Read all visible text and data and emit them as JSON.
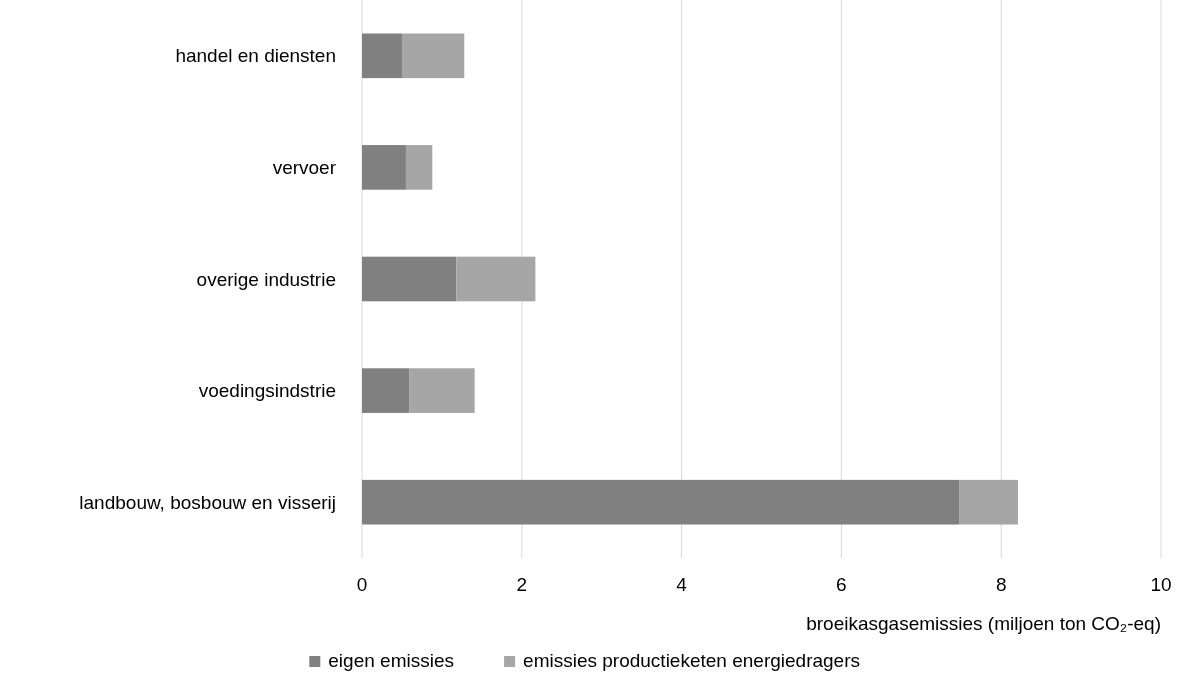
{
  "chart_data": {
    "type": "bar",
    "orientation": "horizontal",
    "stacked": true,
    "categories": [
      "handel en diensten",
      "vervoer",
      "overige industrie",
      "voedingsindstrie",
      "landbouw, bosbouw en visserij"
    ],
    "series": [
      {
        "name": "eigen emissies",
        "color": "#808080",
        "values": [
          0.5,
          0.55,
          1.18,
          0.59,
          7.48
        ]
      },
      {
        "name": "emissies productieketen energiedragers",
        "color": "#a6a6a6",
        "values": [
          0.78,
          0.33,
          0.99,
          0.82,
          0.73
        ]
      }
    ],
    "xlim": [
      0,
      10
    ],
    "xticks": [
      0,
      2,
      4,
      6,
      8,
      10
    ],
    "xlabel": "broeikasgasemissies (miljoen ton CO₂-eq)",
    "grid": "x",
    "legend": "bottom"
  }
}
